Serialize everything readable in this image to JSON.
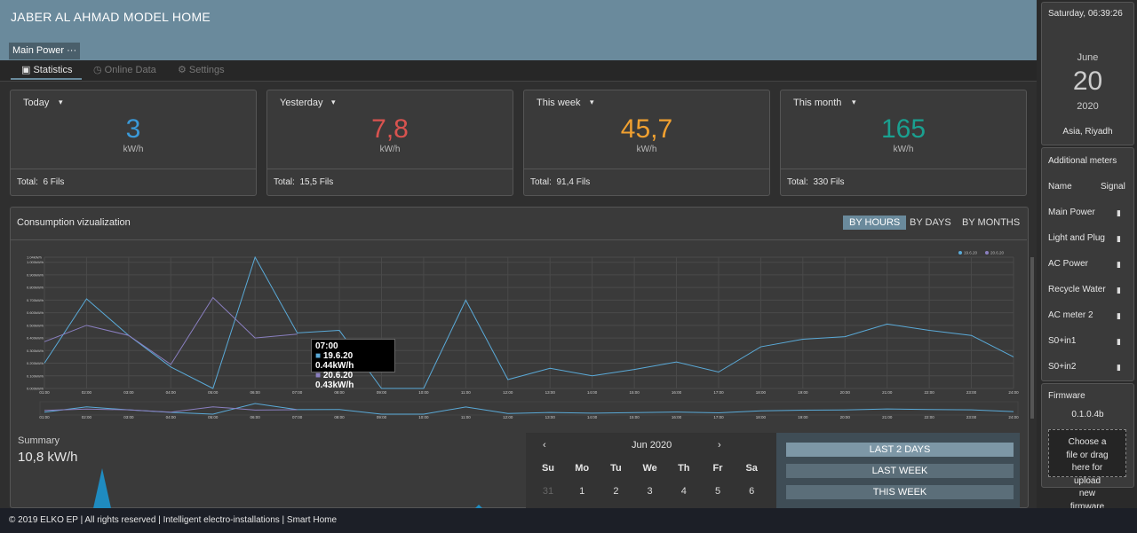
{
  "header": {
    "title": "JABER AL AHMAD MODEL HOME",
    "meter": "Main Power",
    "meter_menu": "···"
  },
  "tabs": [
    "Statistics",
    "Online Data",
    "Settings"
  ],
  "cards": [
    {
      "label": "Today",
      "value": "3",
      "unit": "kW/h",
      "total_label": "Total:",
      "total": "6 Fils"
    },
    {
      "label": "Yesterday",
      "value": "7,8",
      "unit": "kW/h",
      "total_label": "Total:",
      "total": "15,5 Fils"
    },
    {
      "label": "This week",
      "value": "45,7",
      "unit": "kW/h",
      "total_label": "Total:",
      "total": "91,4 Fils"
    },
    {
      "label": "This month",
      "value": "165",
      "unit": "kW/h",
      "total_label": "Total:",
      "total": "330 Fils"
    }
  ],
  "consumption": {
    "title": "Consumption vizualization",
    "views": [
      "BY HOURS",
      "BY DAYS",
      "BY MONTHS"
    ],
    "tooltip": {
      "time": "07:00",
      "rows": [
        "0.44kW/h",
        "0.43kW/h"
      ]
    }
  },
  "chart_data": {
    "type": "line",
    "categories": [
      "01:00",
      "02:00",
      "03:00",
      "04:00",
      "05:00",
      "06:00",
      "07:00",
      "08:00",
      "09:00",
      "10:00",
      "11:00",
      "12:00",
      "13:00",
      "14:00",
      "15:00",
      "16:00",
      "17:00",
      "18:00",
      "19:00",
      "20:00",
      "21:00",
      "22:00",
      "23:00",
      "24:00"
    ],
    "series": [
      {
        "name": "19.6.20",
        "color": "#5aaad8",
        "values": [
          0.2,
          0.71,
          0.42,
          0.17,
          0,
          1.04,
          0.44,
          0.46,
          0,
          0,
          0.7,
          0.07,
          0.16,
          0.1,
          0.15,
          0.21,
          0.13,
          0.33,
          0.39,
          0.41,
          0.51,
          0.46,
          0.42,
          0.25
        ]
      },
      {
        "name": "20.6.20",
        "color": "#8a7fc0",
        "values": [
          0.37,
          0.5,
          0.42,
          0.19,
          0.72,
          0.4,
          0.43,
          null,
          null,
          null,
          null,
          null,
          null,
          null,
          null,
          null,
          null,
          null,
          null,
          null,
          null,
          null,
          null,
          null
        ]
      }
    ],
    "ylim": [
      0,
      1.04
    ],
    "yticks": [
      {
        "value": 0,
        "label": "0.000kW/h"
      },
      {
        "value": 0.1,
        "label": "0.100kW/h"
      },
      {
        "value": 0.2,
        "label": "0.200kW/h"
      },
      {
        "value": 0.3,
        "label": "0.300kW/h"
      },
      {
        "value": 0.4,
        "label": "0.400kW/h"
      },
      {
        "value": 0.5,
        "label": "0.500kW/h"
      },
      {
        "value": 0.6,
        "label": "0.600kW/h"
      },
      {
        "value": 0.7,
        "label": "0.700kW/h"
      },
      {
        "value": 0.8,
        "label": "0.800kW/h"
      },
      {
        "value": 0.9,
        "label": "0.900kW/h"
      },
      {
        "value": 1.0,
        "label": "1.000kW/h"
      },
      {
        "value": 1.04,
        "label": "1.04kW/h"
      }
    ],
    "grid": true,
    "legend": "top-right"
  },
  "summary": {
    "title": "Summary",
    "value": "10,8 kW/h"
  },
  "calendar": {
    "prev": "‹",
    "next": "›",
    "month": "Jun 2020",
    "weekdays": [
      "Su",
      "Mo",
      "Tu",
      "We",
      "Th",
      "Fr",
      "Sa"
    ],
    "days": [
      "31",
      "1",
      "2",
      "3",
      "4",
      "5",
      "6"
    ]
  },
  "ranges": [
    "LAST 2 DAYS",
    "LAST WEEK",
    "THIS WEEK"
  ],
  "clock": {
    "datetime": "Saturday, 06:39:26",
    "month": "June",
    "day": "20",
    "year": "2020",
    "zone": "Asia, Riyadh"
  },
  "meters": {
    "title": "Additional meters",
    "name_header": "Name",
    "signal_header": "Signal",
    "items": [
      "Main Power",
      "Light and Plug",
      "AC Power",
      "Recycle Water",
      "AC meter 2",
      "S0+in1",
      "S0+in2"
    ]
  },
  "firmware": {
    "title": "Firmware",
    "version": "0.1.0.4b",
    "upload": [
      "Choose a",
      "file or drag",
      "here for",
      "upload",
      "new",
      "firmware"
    ]
  },
  "footer": "© 2019 ELKO EP | All rights reserved | Intelligent electro-installations | Smart Home"
}
